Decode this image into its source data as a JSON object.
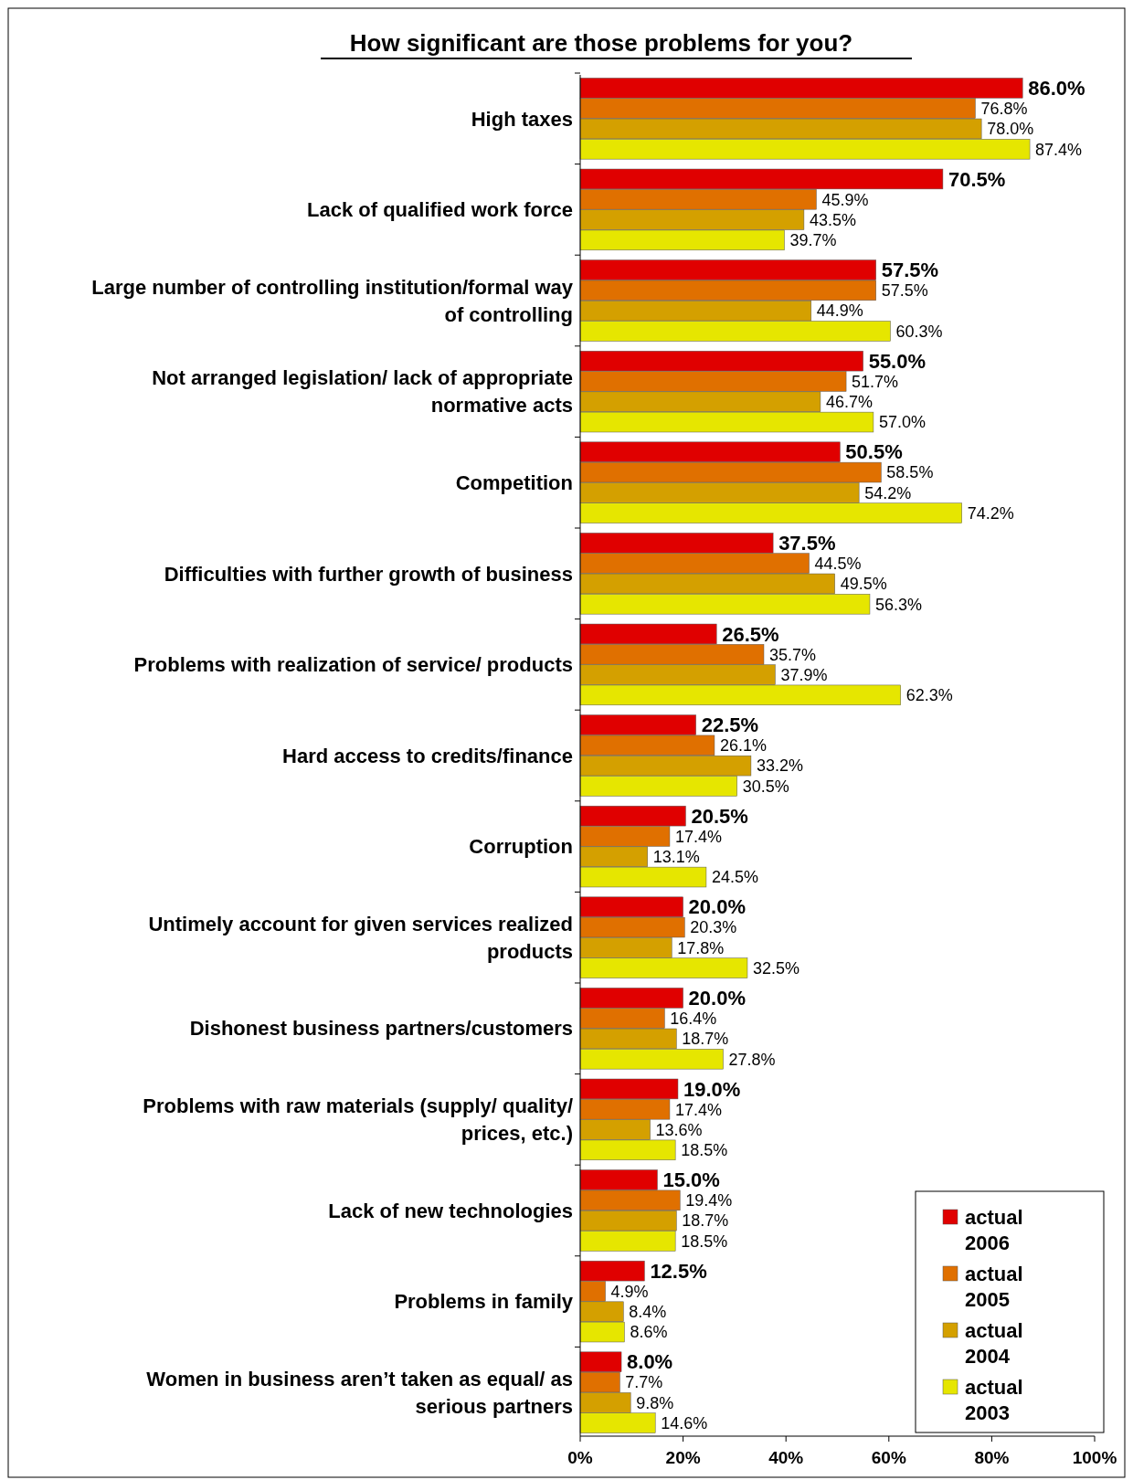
{
  "chart_data": {
    "type": "bar",
    "orientation": "horizontal",
    "title": "How significant are those problems for you?",
    "categories": [
      "High taxes",
      "Lack of qualified work force",
      "Large number of controlling institution/formal way of controlling",
      "Not arranged legislation/ lack of appropriate normative acts",
      "Competition",
      "Difficulties with further growth of business",
      "Problems with realization of service/ products",
      "Hard access to credits/finance",
      "Corruption",
      "Untimely account for given services realized products",
      "Dishonest business partners/customers",
      "Problems with raw materials (supply/ quality/ prices, etc.)",
      "Lack of new technologies",
      "Problems in family",
      "Women in business aren’t taken as equal/ as serious partners"
    ],
    "series": [
      {
        "name": "actual 2006",
        "color": "#e00000",
        "values": [
          86.0,
          70.5,
          57.5,
          55.0,
          50.5,
          37.5,
          26.5,
          22.5,
          20.5,
          20.0,
          20.0,
          19.0,
          15.0,
          12.5,
          8.0
        ],
        "value_labels": [
          "86.0%",
          "70.5%",
          "57.5%",
          "55.0%",
          "50.5%",
          "37.5%",
          "26.5%",
          "22.5%",
          "20.5%",
          "20.0%",
          "20.0%",
          "19.0%",
          "15.0%",
          "12.5%",
          "8.0%"
        ]
      },
      {
        "name": "actual 2005",
        "color": "#e07000",
        "values": [
          76.8,
          45.9,
          57.5,
          51.7,
          58.5,
          44.5,
          35.7,
          26.1,
          17.4,
          20.3,
          16.4,
          17.4,
          19.4,
          4.9,
          7.7
        ],
        "value_labels": [
          "76.8%",
          "45.9%",
          "57.5%",
          "51.7%",
          "58.5%",
          "44.5%",
          "35.7%",
          "26.1%",
          "17.4%",
          "20.3%",
          "16.4%",
          "17.4%",
          "19.4%",
          "4.9%",
          "7.7%"
        ]
      },
      {
        "name": "actual 2004",
        "color": "#d4a000",
        "values": [
          78.0,
          43.5,
          44.9,
          46.7,
          54.2,
          49.5,
          37.9,
          33.2,
          13.1,
          17.8,
          18.7,
          13.6,
          18.7,
          8.4,
          9.8
        ],
        "value_labels": [
          "78.0%",
          "43.5%",
          "44.9%",
          "46.7%",
          "54.2%",
          "49.5%",
          "37.9%",
          "33.2%",
          "13.1%",
          "17.8%",
          "18.7%",
          "13.6%",
          "18.7%",
          "8.4%",
          "9.8%"
        ]
      },
      {
        "name": "actual 2003",
        "color": "#e6e600",
        "values": [
          87.4,
          39.7,
          60.3,
          57.0,
          74.2,
          56.3,
          62.3,
          30.5,
          24.5,
          32.5,
          27.8,
          18.5,
          18.5,
          8.6,
          14.6
        ],
        "value_labels": [
          "87.4%",
          "39.7%",
          "60.3%",
          "57.0%",
          "74.2%",
          "56.3%",
          "62.3%",
          "30.5%",
          "24.5%",
          "32.5%",
          "27.8%",
          "18.5%",
          "18.5%",
          "8.6%",
          "14.6%"
        ]
      }
    ],
    "xlim": [
      0,
      100
    ],
    "xticks": [
      {
        "value": 0,
        "label": "0%"
      },
      {
        "value": 20,
        "label": "20%"
      },
      {
        "value": 40,
        "label": "40%"
      },
      {
        "value": 60,
        "label": "60%"
      },
      {
        "value": 80,
        "label": "80%"
      },
      {
        "value": 100,
        "label": "100%"
      }
    ],
    "legend": "bottom right"
  }
}
